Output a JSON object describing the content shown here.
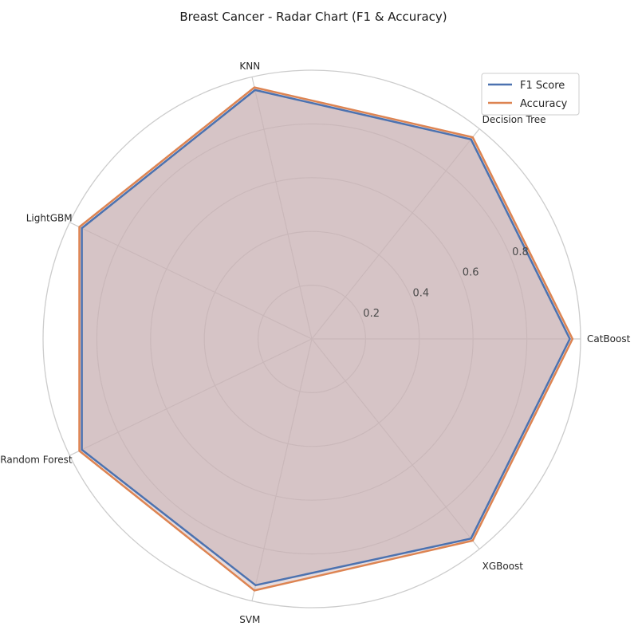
{
  "chart_data": {
    "type": "radar",
    "title": "Breast Cancer - Radar Chart (F1 & Accuracy)",
    "categories": [
      "CatBoost",
      "Decision Tree",
      "KNN",
      "LightGBM",
      "Random Forest",
      "SVM",
      "XGBoost"
    ],
    "series": [
      {
        "name": "F1 Score",
        "values": [
          0.96,
          0.95,
          0.95,
          0.95,
          0.95,
          0.94,
          0.95
        ],
        "color": "#4c72b0"
      },
      {
        "name": "Accuracy",
        "values": [
          0.97,
          0.96,
          0.96,
          0.96,
          0.96,
          0.96,
          0.96
        ],
        "color": "#dd8452"
      }
    ],
    "fill_color": "#c9b1b4",
    "r_range": [
      0,
      1.0
    ],
    "r_ticks": [
      0.2,
      0.4,
      0.6,
      0.8
    ],
    "r_tick_labels": [
      "0.2",
      "0.4",
      "0.6",
      "0.8"
    ],
    "grid": true,
    "legend_position": "top-right"
  }
}
